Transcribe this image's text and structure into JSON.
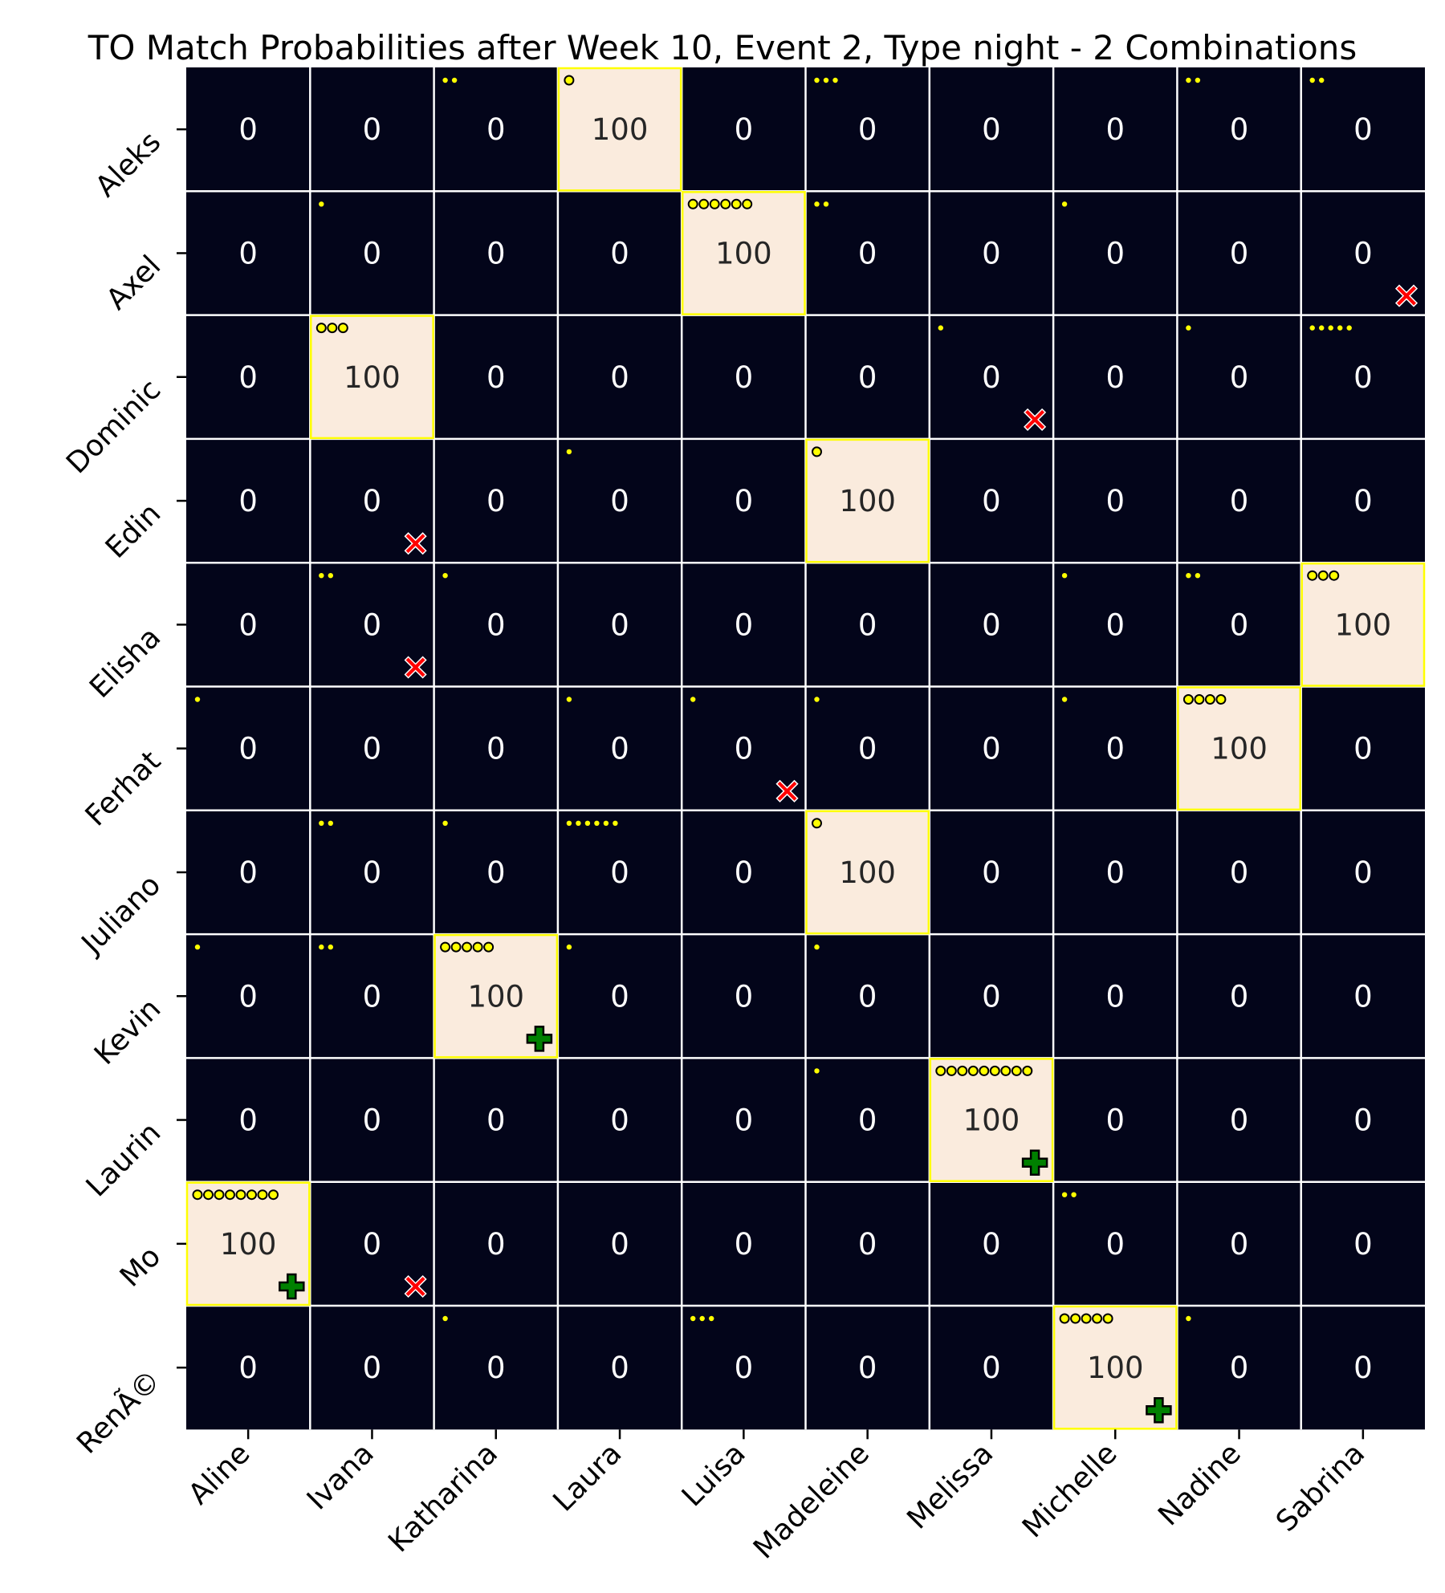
{
  "chart_data": {
    "type": "heatmap",
    "title": "TO Match Probabilities after Week 10, Event 2,  Type night - 2 Combinations",
    "rows": [
      "Aleks",
      "Axel",
      "Dominic",
      "Edin",
      "Elisha",
      "Ferhat",
      "Juliano",
      "Kevin",
      "Laurin",
      "Mo",
      "RenÃ©"
    ],
    "columns": [
      "Aline",
      "Ivana",
      "Katharina",
      "Laura",
      "Luisa",
      "Madeleine",
      "Melissa",
      "Michelle",
      "Nadine",
      "Sabrina"
    ],
    "values": [
      [
        0,
        0,
        0,
        100,
        0,
        0,
        0,
        0,
        0,
        0
      ],
      [
        0,
        0,
        0,
        0,
        100,
        0,
        0,
        0,
        0,
        0
      ],
      [
        0,
        100,
        0,
        0,
        0,
        0,
        0,
        0,
        0,
        0
      ],
      [
        0,
        0,
        0,
        0,
        0,
        100,
        0,
        0,
        0,
        0
      ],
      [
        0,
        0,
        0,
        0,
        0,
        0,
        0,
        0,
        0,
        100
      ],
      [
        0,
        0,
        0,
        0,
        0,
        0,
        0,
        0,
        100,
        0
      ],
      [
        0,
        0,
        0,
        0,
        0,
        100,
        0,
        0,
        0,
        0
      ],
      [
        0,
        0,
        100,
        0,
        0,
        0,
        0,
        0,
        0,
        0
      ],
      [
        0,
        0,
        0,
        0,
        0,
        0,
        100,
        0,
        0,
        0
      ],
      [
        100,
        0,
        0,
        0,
        0,
        0,
        0,
        0,
        0,
        0
      ],
      [
        0,
        0,
        0,
        0,
        0,
        0,
        0,
        100,
        0,
        0
      ]
    ],
    "dot_counts": [
      [
        0,
        0,
        2,
        1,
        0,
        3,
        0,
        0,
        2,
        2
      ],
      [
        0,
        1,
        0,
        0,
        6,
        2,
        0,
        1,
        0,
        0
      ],
      [
        0,
        3,
        0,
        0,
        0,
        0,
        1,
        0,
        1,
        5
      ],
      [
        0,
        0,
        0,
        1,
        0,
        1,
        0,
        0,
        0,
        0
      ],
      [
        0,
        2,
        1,
        0,
        0,
        0,
        0,
        1,
        2,
        3
      ],
      [
        1,
        0,
        0,
        1,
        1,
        1,
        0,
        1,
        4,
        0
      ],
      [
        0,
        2,
        1,
        6,
        0,
        1,
        0,
        0,
        0,
        0
      ],
      [
        1,
        2,
        5,
        1,
        0,
        1,
        0,
        0,
        0,
        0
      ],
      [
        0,
        0,
        0,
        0,
        0,
        1,
        9,
        0,
        0,
        0
      ],
      [
        8,
        0,
        0,
        0,
        0,
        0,
        0,
        2,
        0,
        0
      ],
      [
        0,
        0,
        1,
        0,
        3,
        0,
        0,
        5,
        1,
        0
      ]
    ],
    "no_match_marks": [
      [
        1,
        9
      ],
      [
        2,
        6
      ],
      [
        3,
        1
      ],
      [
        4,
        1
      ],
      [
        5,
        4
      ],
      [
        9,
        1
      ]
    ],
    "perfect_match_marks": [
      [
        7,
        2
      ],
      [
        8,
        6
      ],
      [
        9,
        0
      ],
      [
        10,
        7
      ]
    ],
    "colors": {
      "low": "#03051a",
      "high": "#faebdd",
      "highlight_border": "#ffff00",
      "dot": "#ffff00",
      "no_match": "#ff0000",
      "perfect_match": "#008000",
      "grid": "#ffffff"
    },
    "legend": "none",
    "grid": true
  }
}
